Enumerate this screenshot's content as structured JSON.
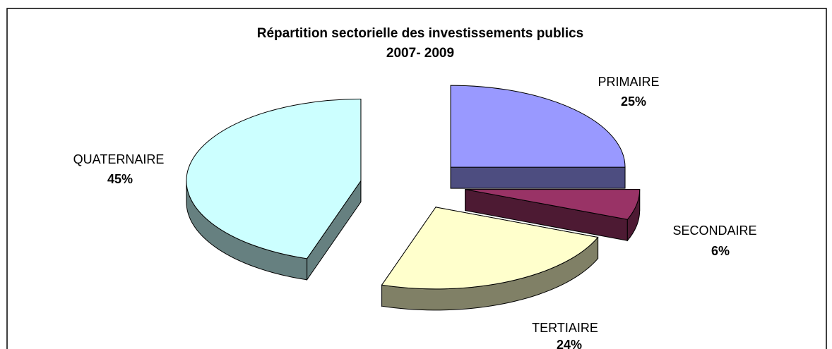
{
  "chart_data": {
    "type": "pie3d",
    "title": "Répartition sectorielle des investissements publics",
    "subtitle": "2007- 2009",
    "categories": [
      "PRIMAIRE",
      "SECONDAIRE",
      "TERTIAIRE",
      "QUATERNAIRE"
    ],
    "values": [
      25,
      6,
      24,
      45
    ],
    "value_labels": [
      "25%",
      "6%",
      "24%",
      "45%"
    ],
    "colors": [
      "#9999ff",
      "#993366",
      "#ffffcc",
      "#ccffff"
    ]
  }
}
